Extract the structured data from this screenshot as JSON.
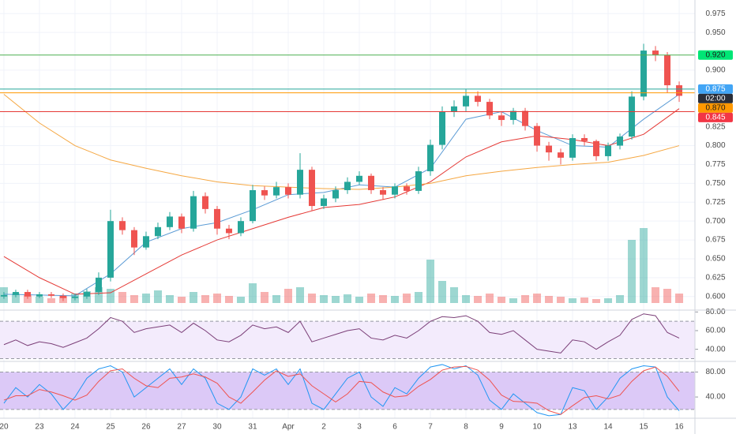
{
  "chart_data": [
    {
      "type": "candlestick",
      "xlim": [
        -0.33,
        58.33
      ],
      "ylim": [
        0.582,
        0.993
      ],
      "xticks": [
        {
          "value": 0,
          "label": "20"
        },
        {
          "value": 3,
          "label": "23"
        },
        {
          "value": 6,
          "label": "24"
        },
        {
          "value": 9,
          "label": "25"
        },
        {
          "value": 12,
          "label": "26"
        },
        {
          "value": 15,
          "label": "27"
        },
        {
          "value": 18,
          "label": "30"
        },
        {
          "value": 21,
          "label": "31"
        },
        {
          "value": 24,
          "label": "Apr"
        },
        {
          "value": 27,
          "label": "2"
        },
        {
          "value": 30,
          "label": "3"
        },
        {
          "value": 33,
          "label": "6"
        },
        {
          "value": 36,
          "label": "7"
        },
        {
          "value": 39,
          "label": "8"
        },
        {
          "value": 42,
          "label": "9"
        },
        {
          "value": 45,
          "label": "10"
        },
        {
          "value": 48,
          "label": "13"
        },
        {
          "value": 51,
          "label": "14"
        },
        {
          "value": 54,
          "label": "15"
        },
        {
          "value": 57,
          "label": "16"
        }
      ],
      "yticks": [
        {
          "value": 0.975,
          "label": "0.975"
        },
        {
          "value": 0.95,
          "label": "0.950"
        },
        {
          "value": 0.9,
          "label": "0.900"
        },
        {
          "value": 0.825,
          "label": "0.825"
        },
        {
          "value": 0.8,
          "label": "0.800"
        },
        {
          "value": 0.775,
          "label": "0.775"
        },
        {
          "value": 0.75,
          "label": "0.750"
        },
        {
          "value": 0.725,
          "label": "0.725"
        },
        {
          "value": 0.7,
          "label": "0.700"
        },
        {
          "value": 0.675,
          "label": "0.675"
        },
        {
          "value": 0.65,
          "label": "0.650"
        },
        {
          "value": 0.625,
          "label": "0.625"
        },
        {
          "value": 0.6,
          "label": "0.600"
        }
      ],
      "grid": true,
      "up_color": "#26a69a",
      "down_color": "#ef5350",
      "x": [
        0,
        1,
        2,
        3,
        4,
        5,
        6,
        7,
        8,
        9,
        10,
        11,
        12,
        13,
        14,
        15,
        16,
        17,
        18,
        19,
        20,
        21,
        22,
        23,
        24,
        25,
        26,
        27,
        28,
        29,
        30,
        31,
        32,
        33,
        34,
        35,
        36,
        37,
        38,
        39,
        40,
        41,
        42,
        43,
        44,
        45,
        46,
        47,
        48,
        49,
        50,
        51,
        52,
        53,
        54,
        55,
        56,
        57
      ],
      "open": [
        0.6,
        0.602,
        0.606,
        0.6,
        0.603,
        0.601,
        0.598,
        0.6,
        0.606,
        0.625,
        0.7,
        0.688,
        0.665,
        0.68,
        0.692,
        0.706,
        0.69,
        0.733,
        0.716,
        0.69,
        0.684,
        0.7,
        0.741,
        0.734,
        0.745,
        0.735,
        0.768,
        0.72,
        0.73,
        0.741,
        0.752,
        0.76,
        0.741,
        0.735,
        0.746,
        0.74,
        0.766,
        0.801,
        0.845,
        0.852,
        0.866,
        0.858,
        0.84,
        0.834,
        0.846,
        0.826,
        0.8,
        0.791,
        0.784,
        0.81,
        0.806,
        0.786,
        0.8,
        0.812,
        0.865,
        0.926,
        0.92,
        0.88
      ],
      "high": [
        0.606,
        0.609,
        0.609,
        0.606,
        0.606,
        0.604,
        0.604,
        0.61,
        0.632,
        0.715,
        0.705,
        0.692,
        0.686,
        0.698,
        0.712,
        0.71,
        0.74,
        0.738,
        0.72,
        0.695,
        0.705,
        0.748,
        0.746,
        0.752,
        0.75,
        0.79,
        0.772,
        0.735,
        0.746,
        0.758,
        0.766,
        0.763,
        0.745,
        0.75,
        0.75,
        0.772,
        0.808,
        0.852,
        0.86,
        0.875,
        0.872,
        0.862,
        0.845,
        0.85,
        0.85,
        0.83,
        0.805,
        0.796,
        0.815,
        0.815,
        0.808,
        0.804,
        0.816,
        0.872,
        0.935,
        0.932,
        0.924,
        0.885
      ],
      "low": [
        0.597,
        0.599,
        0.597,
        0.598,
        0.598,
        0.594,
        0.595,
        0.597,
        0.602,
        0.62,
        0.682,
        0.655,
        0.662,
        0.676,
        0.688,
        0.684,
        0.686,
        0.71,
        0.682,
        0.676,
        0.68,
        0.697,
        0.728,
        0.73,
        0.73,
        0.73,
        0.714,
        0.716,
        0.725,
        0.736,
        0.748,
        0.736,
        0.728,
        0.73,
        0.735,
        0.736,
        0.76,
        0.795,
        0.838,
        0.845,
        0.852,
        0.835,
        0.826,
        0.828,
        0.82,
        0.792,
        0.78,
        0.775,
        0.78,
        0.8,
        0.78,
        0.78,
        0.795,
        0.808,
        0.86,
        0.912,
        0.87,
        0.858
      ],
      "close": [
        0.602,
        0.606,
        0.6,
        0.603,
        0.601,
        0.598,
        0.6,
        0.606,
        0.625,
        0.7,
        0.688,
        0.665,
        0.68,
        0.692,
        0.706,
        0.69,
        0.733,
        0.716,
        0.69,
        0.684,
        0.7,
        0.741,
        0.734,
        0.745,
        0.735,
        0.768,
        0.72,
        0.73,
        0.741,
        0.752,
        0.76,
        0.741,
        0.735,
        0.746,
        0.74,
        0.766,
        0.801,
        0.845,
        0.852,
        0.866,
        0.858,
        0.84,
        0.834,
        0.846,
        0.826,
        0.8,
        0.791,
        0.784,
        0.81,
        0.806,
        0.786,
        0.8,
        0.812,
        0.865,
        0.926,
        0.92,
        0.88,
        0.866
      ],
      "volume": {
        "ylim": [
          0,
          100
        ],
        "values": [
          20,
          12,
          10,
          8,
          6,
          9,
          12,
          15,
          20,
          18,
          14,
          10,
          12,
          16,
          10,
          8,
          14,
          10,
          12,
          9,
          8,
          25,
          14,
          10,
          18,
          20,
          12,
          10,
          9,
          11,
          8,
          12,
          10,
          9,
          12,
          14,
          55,
          28,
          20,
          10,
          9,
          12,
          8,
          6,
          10,
          12,
          9,
          8,
          6,
          7,
          5,
          6,
          10,
          80,
          95,
          20,
          18,
          12
        ]
      },
      "series": [
        {
          "color": "#5b9bd5",
          "x": [
            0,
            3,
            6,
            9,
            12,
            15,
            18,
            21,
            24,
            27,
            30,
            33,
            36,
            39,
            42,
            45,
            48,
            51,
            54,
            57
          ],
          "values": [
            0.603,
            0.602,
            0.601,
            0.63,
            0.672,
            0.69,
            0.698,
            0.715,
            0.735,
            0.738,
            0.748,
            0.745,
            0.77,
            0.835,
            0.845,
            0.82,
            0.8,
            0.798,
            0.835,
            0.868
          ]
        },
        {
          "color": "#e53935",
          "x": [
            0,
            3,
            6,
            9,
            12,
            15,
            18,
            21,
            24,
            27,
            30,
            33,
            36,
            39,
            42,
            45,
            48,
            51,
            54,
            57
          ],
          "values": [
            0.653,
            0.625,
            0.603,
            0.605,
            0.63,
            0.655,
            0.675,
            0.69,
            0.705,
            0.718,
            0.722,
            0.732,
            0.752,
            0.785,
            0.805,
            0.813,
            0.808,
            0.8,
            0.815,
            0.849
          ]
        },
        {
          "color": "#f5a742",
          "x": [
            0,
            3,
            6,
            9,
            12,
            15,
            18,
            21,
            24,
            27,
            30,
            33,
            36,
            39,
            42,
            45,
            48,
            51,
            54,
            57
          ],
          "values": [
            0.868,
            0.83,
            0.8,
            0.781,
            0.77,
            0.76,
            0.752,
            0.747,
            0.745,
            0.743,
            0.742,
            0.745,
            0.75,
            0.76,
            0.766,
            0.771,
            0.775,
            0.778,
            0.787,
            0.8
          ]
        }
      ],
      "price_lines": [
        {
          "value": 0.92,
          "label": "0.920",
          "color": "#4caf50",
          "label_color": "#00e676",
          "text_color": "#1b1b1b"
        },
        {
          "value": 0.875,
          "label": "0.875",
          "color": "#26a69a",
          "label_color": "#42a5f5",
          "text_color": "#ffffff"
        },
        {
          "value": 0.87,
          "label": "0.870",
          "color": "#ff9800",
          "label_color": "#ff9800",
          "text_color": "#1b1b1b"
        },
        {
          "value": 0.845,
          "label": "0.845",
          "color": "#e53935",
          "label_color": "#f23645",
          "text_color": "#ffffff"
        }
      ],
      "countdown": "02:00"
    },
    {
      "type": "line",
      "ylim": [
        27,
        82
      ],
      "yticks": [
        {
          "value": 80,
          "label": "80.00"
        },
        {
          "value": 60,
          "label": "60.00"
        },
        {
          "value": 40,
          "label": "40.00"
        }
      ],
      "bands": [
        30,
        70
      ],
      "band_color": "#f3ebfc",
      "color": "#7b3f78",
      "values": [
        45,
        50,
        44,
        48,
        46,
        42,
        47,
        52,
        62,
        74,
        70,
        58,
        62,
        64,
        66,
        58,
        68,
        60,
        50,
        48,
        55,
        66,
        62,
        64,
        58,
        70,
        48,
        52,
        56,
        60,
        62,
        52,
        50,
        55,
        52,
        60,
        70,
        75,
        74,
        76,
        70,
        58,
        56,
        60,
        50,
        40,
        38,
        36,
        50,
        48,
        40,
        48,
        55,
        72,
        78,
        76,
        58,
        52
      ]
    },
    {
      "type": "line",
      "ylim": [
        6,
        97
      ],
      "yticks": [
        {
          "value": 80,
          "label": "80.00"
        },
        {
          "value": 40,
          "label": "40.00"
        }
      ],
      "bands": [
        20,
        80
      ],
      "band_color": "#dcc9f7",
      "series": [
        {
          "color": "#2196f3",
          "values": [
            30,
            55,
            40,
            60,
            45,
            20,
            40,
            70,
            85,
            90,
            80,
            40,
            55,
            70,
            85,
            60,
            85,
            70,
            30,
            20,
            40,
            85,
            75,
            85,
            60,
            85,
            30,
            20,
            45,
            70,
            80,
            40,
            25,
            55,
            45,
            70,
            88,
            92,
            85,
            90,
            75,
            35,
            20,
            45,
            30,
            15,
            10,
            12,
            55,
            50,
            20,
            40,
            70,
            85,
            90,
            88,
            40,
            18
          ]
        },
        {
          "color": "#ef5350",
          "values": [
            35,
            42,
            42,
            52,
            48,
            42,
            35,
            43,
            65,
            82,
            85,
            70,
            58,
            55,
            70,
            72,
            77,
            72,
            62,
            40,
            30,
            48,
            67,
            82,
            73,
            77,
            58,
            45,
            32,
            45,
            65,
            63,
            48,
            40,
            42,
            57,
            68,
            83,
            88,
            89,
            83,
            67,
            43,
            33,
            32,
            30,
            18,
            12,
            26,
            39,
            42,
            37,
            43,
            65,
            82,
            88,
            73,
            49
          ]
        }
      ]
    }
  ]
}
